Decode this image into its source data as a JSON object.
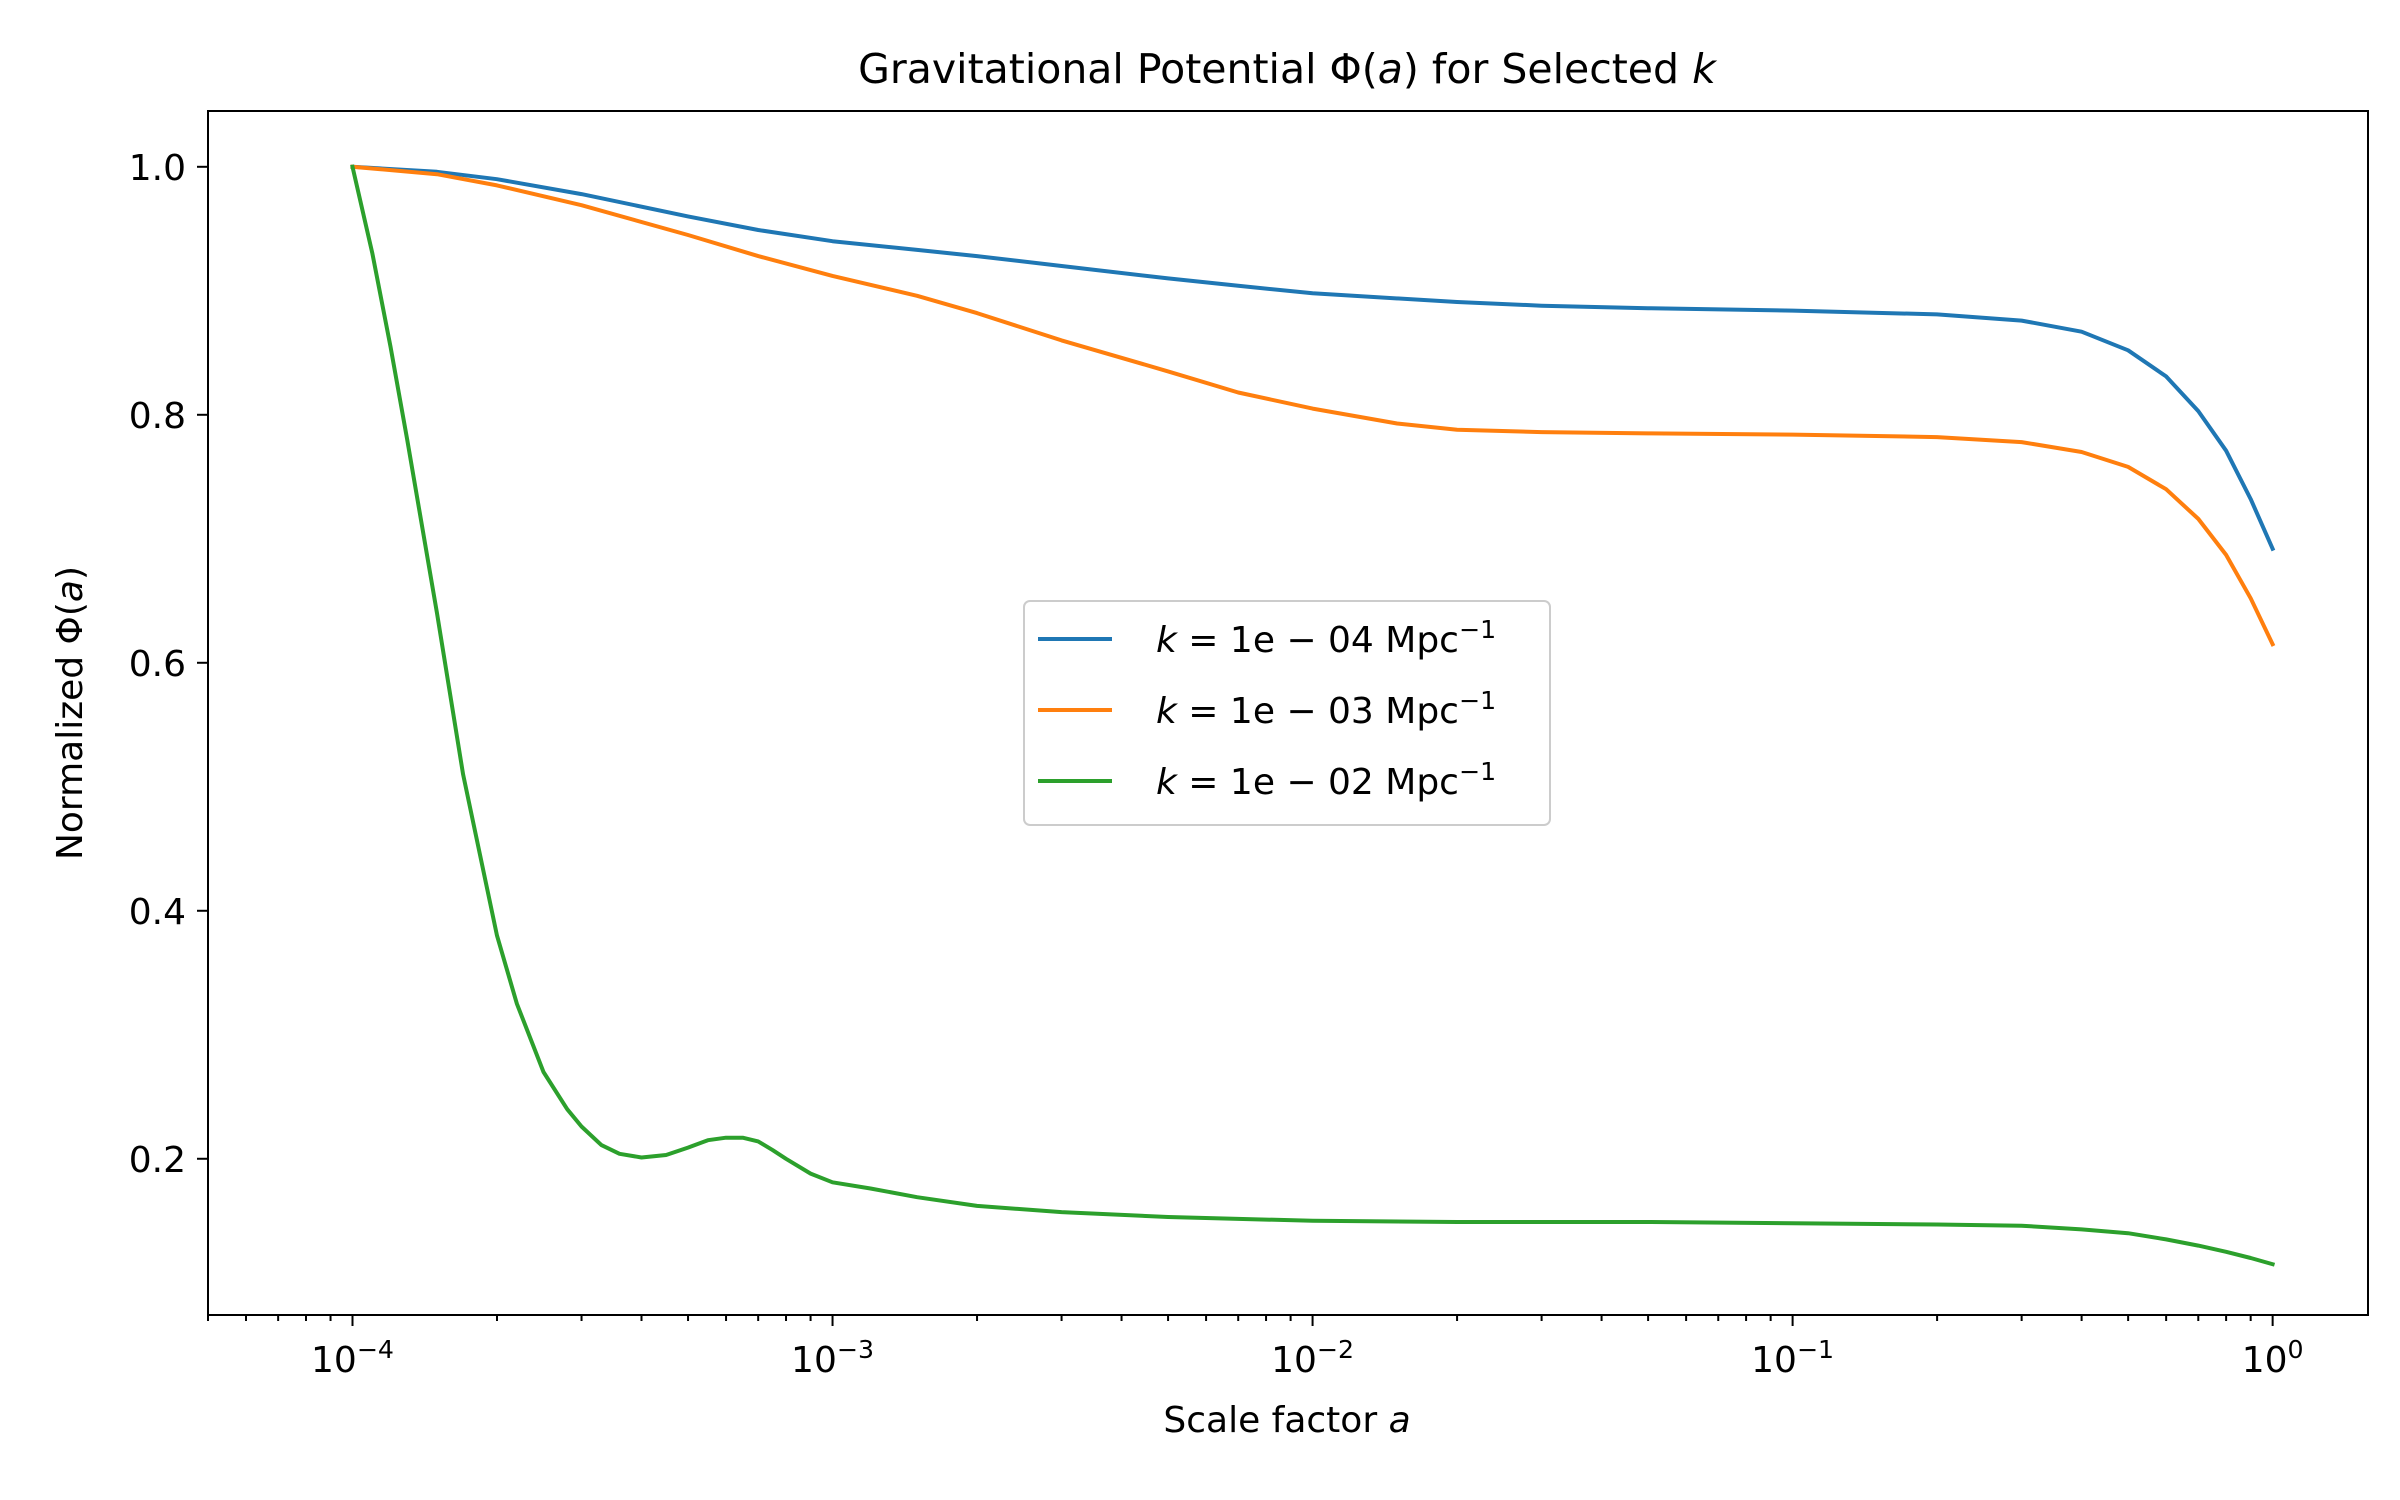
{
  "chart_data": {
    "type": "line",
    "title": "Gravitational Potential Φ(a) for Selected k",
    "xlabel": "Scale factor a",
    "ylabel": "Normalized Φ(a)",
    "xscale": "log",
    "xlim": [
      5e-05,
      1.58
    ],
    "ylim": [
      0.074,
      1.045
    ],
    "xticks": [
      {
        "value": 0.0001,
        "base": "10",
        "exp": "−4"
      },
      {
        "value": 0.001,
        "base": "10",
        "exp": "−3"
      },
      {
        "value": 0.01,
        "base": "10",
        "exp": "−2"
      },
      {
        "value": 0.1,
        "base": "10",
        "exp": "−1"
      },
      {
        "value": 1,
        "base": "10",
        "exp": "0"
      }
    ],
    "yticks": [
      {
        "value": 0.2,
        "label": "0.2"
      },
      {
        "value": 0.4,
        "label": "0.4"
      },
      {
        "value": 0.6,
        "label": "0.6"
      },
      {
        "value": 0.8,
        "label": "0.8"
      },
      {
        "value": 1.0,
        "label": "1.0"
      }
    ],
    "grid": false,
    "legend_position": "center-right",
    "series": [
      {
        "name": "k = 1e − 04 Mpc⁻¹",
        "legend": {
          "k": "k",
          "eq": " = 1e − 04 Mpc",
          "sup": "−1"
        },
        "color": "#1f77b4",
        "x": [
          0.0001,
          0.00015,
          0.0002,
          0.0003,
          0.0005,
          0.0007,
          0.001,
          0.0015,
          0.002,
          0.003,
          0.005,
          0.007,
          0.01,
          0.02,
          0.03,
          0.05,
          0.1,
          0.2,
          0.3,
          0.4,
          0.5,
          0.6,
          0.7,
          0.8,
          0.9,
          1.0
        ],
        "y": [
          1.0,
          0.996,
          0.99,
          0.978,
          0.96,
          0.949,
          0.94,
          0.933,
          0.928,
          0.92,
          0.91,
          0.904,
          0.898,
          0.891,
          0.888,
          0.886,
          0.884,
          0.881,
          0.876,
          0.867,
          0.852,
          0.831,
          0.803,
          0.771,
          0.732,
          0.692
        ]
      },
      {
        "name": "k = 1e − 03 Mpc⁻¹",
        "legend": {
          "k": "k",
          "eq": " = 1e − 03 Mpc",
          "sup": "−1"
        },
        "color": "#ff7f0e",
        "x": [
          0.0001,
          0.00015,
          0.0002,
          0.0003,
          0.0005,
          0.0007,
          0.001,
          0.0015,
          0.002,
          0.003,
          0.005,
          0.007,
          0.01,
          0.015,
          0.02,
          0.03,
          0.05,
          0.1,
          0.2,
          0.3,
          0.4,
          0.5,
          0.6,
          0.7,
          0.8,
          0.9,
          1.0
        ],
        "y": [
          1.0,
          0.994,
          0.985,
          0.969,
          0.945,
          0.928,
          0.912,
          0.896,
          0.882,
          0.86,
          0.835,
          0.818,
          0.805,
          0.793,
          0.788,
          0.786,
          0.785,
          0.784,
          0.782,
          0.778,
          0.77,
          0.758,
          0.74,
          0.716,
          0.687,
          0.652,
          0.615
        ]
      },
      {
        "name": "k = 1e − 02 Mpc⁻¹",
        "legend": {
          "k": "k",
          "eq": " = 1e − 02 Mpc",
          "sup": "−1"
        },
        "color": "#2ca02c",
        "x": [
          0.0001,
          0.00011,
          0.00012,
          0.00013,
          0.00015,
          0.00017,
          0.0002,
          0.00022,
          0.00025,
          0.00028,
          0.0003,
          0.00033,
          0.00036,
          0.0004,
          0.00045,
          0.0005,
          0.00055,
          0.0006,
          0.00065,
          0.0007,
          0.00075,
          0.0008,
          0.0009,
          0.001,
          0.0012,
          0.0015,
          0.002,
          0.003,
          0.005,
          0.01,
          0.02,
          0.05,
          0.1,
          0.2,
          0.3,
          0.4,
          0.5,
          0.6,
          0.7,
          0.8,
          0.9,
          1.0
        ],
        "y": [
          1.0,
          0.93,
          0.855,
          0.78,
          0.64,
          0.51,
          0.38,
          0.325,
          0.27,
          0.24,
          0.226,
          0.211,
          0.204,
          0.201,
          0.203,
          0.209,
          0.215,
          0.217,
          0.217,
          0.214,
          0.207,
          0.2,
          0.188,
          0.181,
          0.176,
          0.169,
          0.162,
          0.157,
          0.153,
          0.15,
          0.149,
          0.149,
          0.148,
          0.147,
          0.146,
          0.143,
          0.14,
          0.135,
          0.13,
          0.125,
          0.12,
          0.115
        ]
      }
    ]
  }
}
